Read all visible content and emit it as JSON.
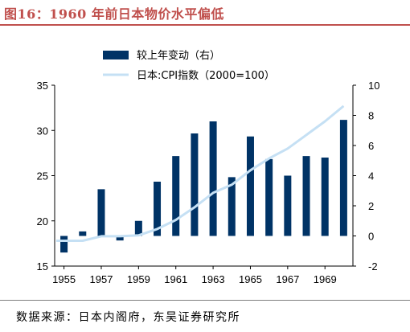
{
  "title": "图16：1960 年前日本物价水平偏低",
  "source": "数据来源：日本内阁府，东吴证券研究所",
  "colors": {
    "bar": "#003366",
    "line": "#c5e0f4",
    "title": "#c0504d"
  },
  "chart_data": {
    "type": "bar+line",
    "x_ticks": [
      "1955",
      "1957",
      "1959",
      "1961",
      "1963",
      "1965",
      "1967",
      "1969"
    ],
    "years": [
      1955,
      1956,
      1957,
      1958,
      1959,
      1960,
      1961,
      1962,
      1963,
      1964,
      1965,
      1966,
      1967,
      1968,
      1969,
      1970
    ],
    "series": [
      {
        "name": "较上年变动（右）",
        "type": "bar",
        "axis": "right",
        "values": [
          -1.1,
          0.3,
          3.1,
          -0.3,
          1.0,
          3.6,
          5.3,
          6.8,
          7.6,
          3.9,
          6.6,
          5.1,
          4.0,
          5.3,
          5.2,
          7.7
        ]
      },
      {
        "name": "日本:CPI指数（2000=100）",
        "type": "line",
        "axis": "left",
        "values": [
          17.8,
          17.8,
          18.3,
          18.3,
          18.4,
          19.1,
          20.1,
          21.5,
          23.1,
          24.0,
          25.6,
          26.9,
          28.0,
          29.5,
          31.0,
          32.7
        ]
      }
    ],
    "left_axis": {
      "min": 15,
      "max": 35,
      "ticks": [
        "15",
        "20",
        "25",
        "30",
        "35"
      ]
    },
    "right_axis": {
      "min": -2,
      "max": 10,
      "ticks": [
        "-2",
        "0",
        "2",
        "4",
        "6",
        "8",
        "10"
      ]
    },
    "legend_position": "top-center",
    "grid": false
  }
}
